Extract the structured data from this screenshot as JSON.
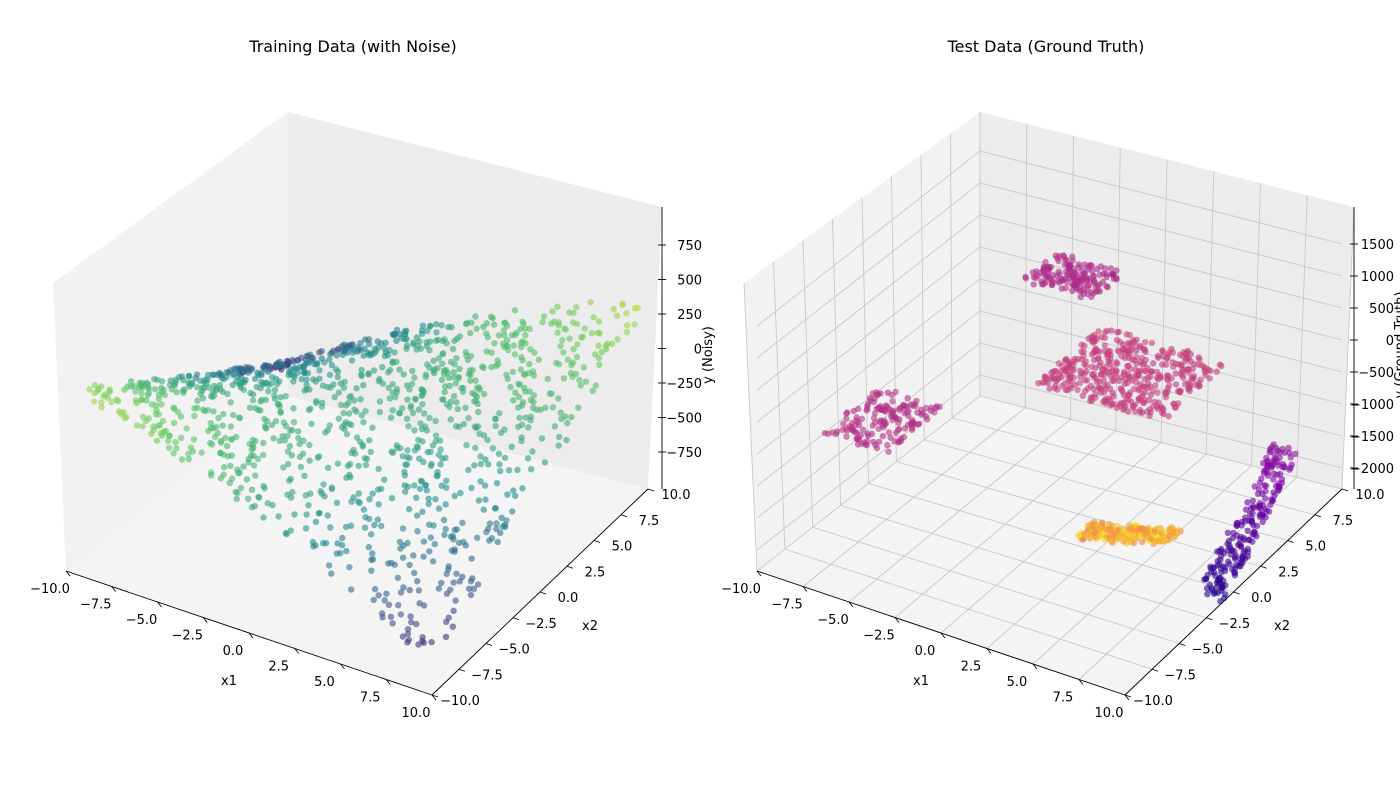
{
  "chart_data": [
    {
      "type": "scatter",
      "title": "Training Data (with Noise)",
      "xlabel": "x1",
      "ylabel": "x2",
      "zlabel": "y (Noisy)",
      "xlim": [
        -10,
        10
      ],
      "ylim": [
        -10,
        10
      ],
      "zlim": [
        -1000,
        1000
      ],
      "xticks": [
        "−10.0",
        "−7.5",
        "−5.0",
        "−2.5",
        "0.0",
        "2.5",
        "5.0",
        "7.5",
        "10.0"
      ],
      "yticks": [
        "−10.0",
        "−7.5",
        "−5.0",
        "−2.5",
        "0.0",
        "2.5",
        "5.0",
        "7.5",
        "10.0"
      ],
      "zticks": [
        "−750",
        "−500",
        "−250",
        "0",
        "250",
        "500",
        "750"
      ],
      "colormap": "viridis",
      "grid": false,
      "series": [
        {
          "x_range": [
            -10,
            10
          ],
          "y_range": [
            -10,
            10
          ],
          "z_range": [
            -900,
            600
          ],
          "pattern": "saddle-shaped surface sampled in patches"
        }
      ]
    },
    {
      "type": "scatter",
      "title": "Test Data (Ground Truth)",
      "xlabel": "x1",
      "ylabel": "x2",
      "zlabel": "y (Ground Truth)",
      "xlim": [
        -10,
        10
      ],
      "ylim": [
        -10,
        10
      ],
      "zlim": [
        -2000,
        1800
      ],
      "xticks": [
        "−10.0",
        "−7.5",
        "−5.0",
        "−2.5",
        "0.0",
        "2.5",
        "5.0",
        "7.5",
        "10.0"
      ],
      "yticks": [
        "−10.0",
        "−7.5",
        "−5.0",
        "−2.5",
        "0.0",
        "2.5",
        "5.0",
        "7.5",
        "10.0"
      ],
      "zticks": [
        "−2000",
        "−1500",
        "−1000",
        "−500",
        "0",
        "500",
        "1000",
        "1500"
      ],
      "colormap": "plasma",
      "grid": true,
      "series": [
        {
          "name": "",
          "x_range": [
            -10,
            10
          ],
          "y_range": [
            -10,
            10
          ],
          "z_range": [
            -2000,
            1500
          ],
          "pattern": "separate flat patches and curved bands"
        }
      ]
    }
  ]
}
